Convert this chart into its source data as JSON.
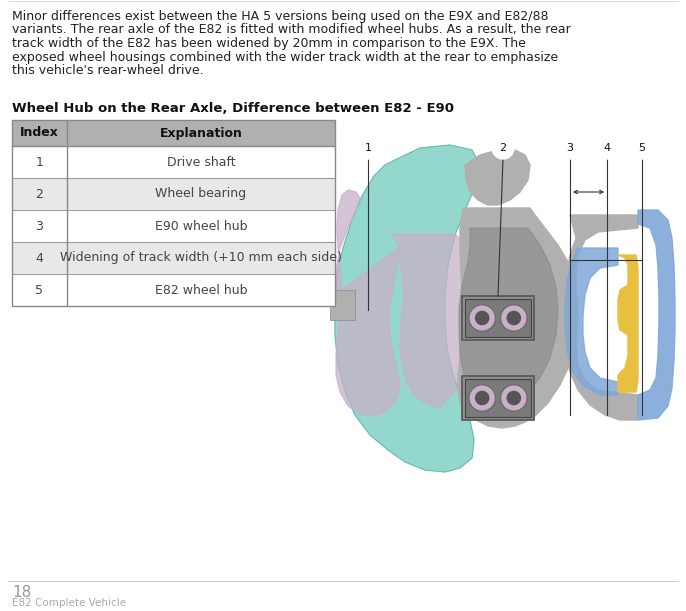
{
  "background_color": "#ffffff",
  "body_text_lines": [
    "Minor differences exist between the HA 5 versions being used on the E9X and E82/88",
    "variants. The rear axle of the E82 is fitted with modified wheel hubs. As a result, the rear",
    "track width of the E82 has been widened by 20mm in comparison to the E9X. The",
    "exposed wheel housings combined with the wider track width at the rear to emphasize",
    "this vehicle's rear-wheel drive."
  ],
  "section_title": "Wheel Hub on the Rear Axle, Difference between E82 - E90",
  "table_headers": [
    "Index",
    "Explanation"
  ],
  "table_rows": [
    [
      "1",
      "Drive shaft"
    ],
    [
      "2",
      "Wheel bearing"
    ],
    [
      "3",
      "E90 wheel hub"
    ],
    [
      "4",
      "Widening of track width (+10 mm each side)"
    ],
    [
      "5",
      "E82 wheel hub"
    ]
  ],
  "table_header_bg": "#b0b0b0",
  "table_row_bg_white": "#ffffff",
  "table_row_bg_gray": "#e8e8e8",
  "table_border": "#888888",
  "footer_number": "18",
  "footer_text": "E82 Complete Vehicle",
  "teal_color": "#88D4C8",
  "pink_color": "#C8B0C8",
  "blue_color": "#80A8D8",
  "gold_color": "#E8C040",
  "gray_dark": "#888888",
  "gray_mid": "#B0B0B0",
  "gray_light": "#D0D0D0",
  "gray_housing": "#A8A8A8",
  "body_fontsize": 9.0,
  "title_fontsize": 9.5,
  "table_fontsize": 9.0,
  "footer_number_fontsize": 11,
  "footer_text_fontsize": 7.5
}
